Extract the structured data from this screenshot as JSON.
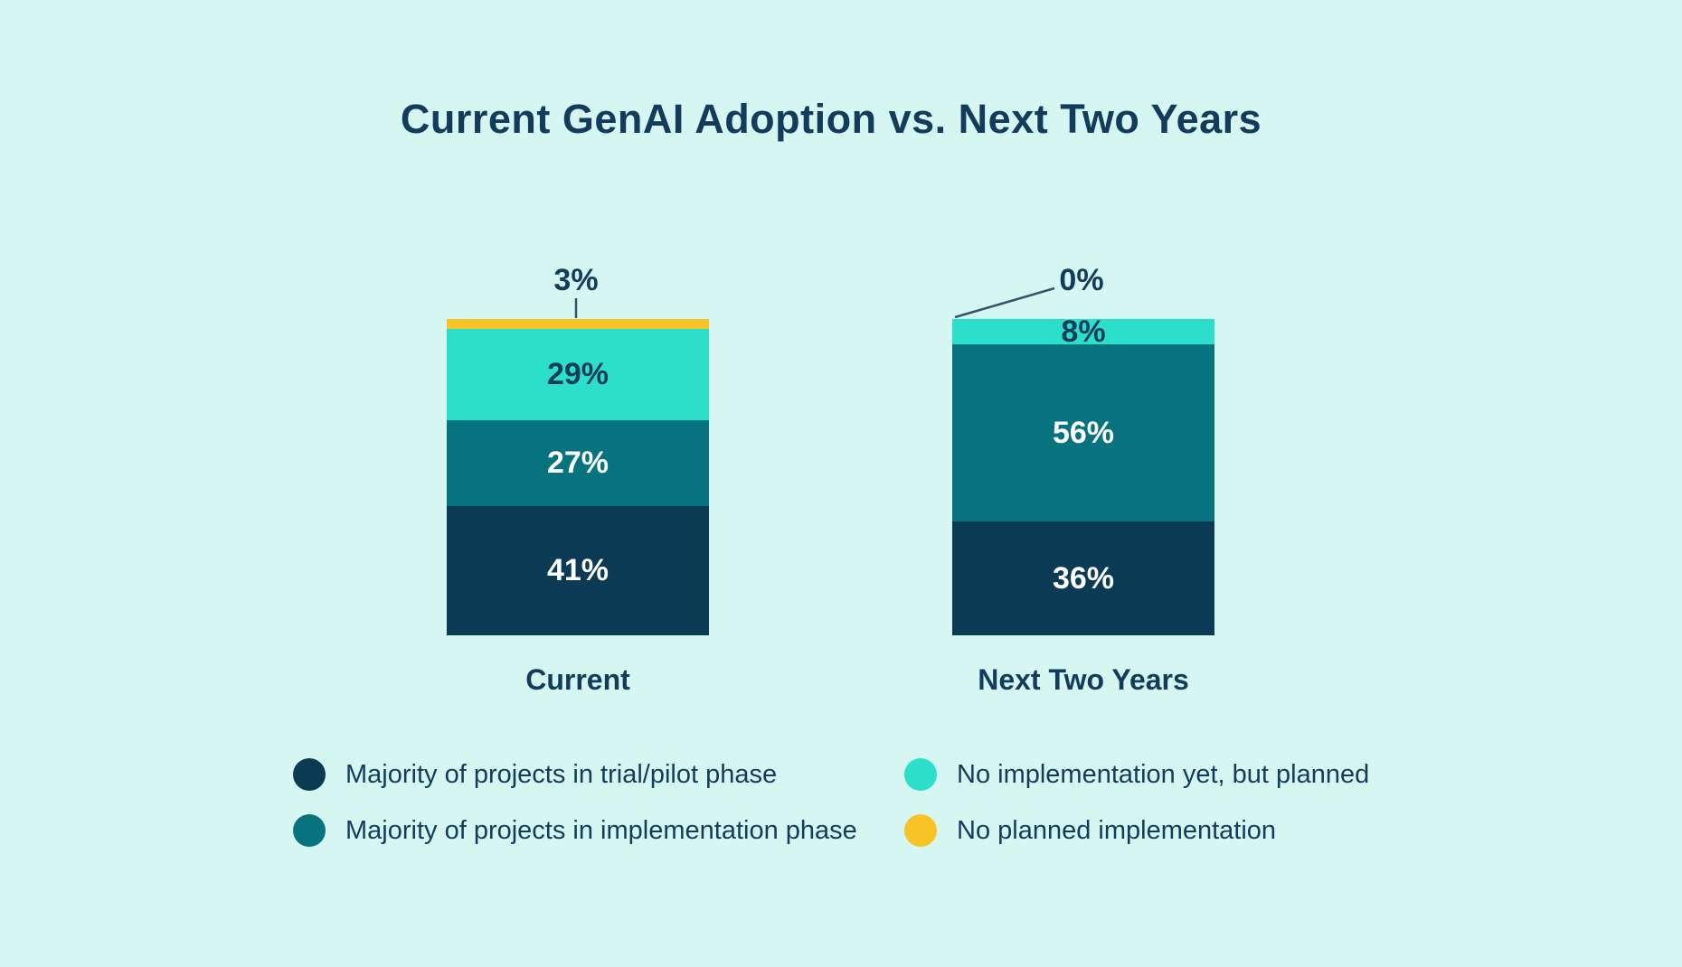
{
  "title": "Current GenAI Adoption vs. Next Two Years",
  "colors": {
    "background": "#D6F6F2",
    "navy": "#0A3A54",
    "teal": "#06737F",
    "turquoise": "#2BDFCB",
    "yellow": "#F7C327",
    "text_dark": "#133C5C",
    "text_light": "#FFFFFF",
    "leader_line": "#2F566B"
  },
  "chart_data": {
    "type": "bar",
    "subtype": "stacked-100-percent-column",
    "title": "Current GenAI Adoption vs. Next Two Years",
    "categories": [
      "Current",
      "Next Two Years"
    ],
    "series": [
      {
        "name": "Majority of projects in trial/pilot phase",
        "color": "#0A3A54",
        "values": [
          41,
          36
        ]
      },
      {
        "name": "Majority of projects in implementation phase",
        "color": "#06737F",
        "values": [
          27,
          56
        ]
      },
      {
        "name": "No implementation yet, but planned",
        "color": "#2BDFCB",
        "values": [
          29,
          8
        ]
      },
      {
        "name": "No planned implementation",
        "color": "#F7C327",
        "values": [
          3,
          0
        ]
      }
    ],
    "ylim": [
      0,
      100
    ],
    "grid": false,
    "axis_ticks": false,
    "legend_position": "bottom",
    "value_label_format": "percent"
  },
  "bars": [
    {
      "category": "Current",
      "callout": {
        "label": "3%"
      },
      "segments": [
        {
          "label": "3%",
          "pct": 3,
          "color": "yellow",
          "label_inside": false
        },
        {
          "label": "29%",
          "pct": 29,
          "color": "turquoise",
          "label_inside": true,
          "text": "dark"
        },
        {
          "label": "27%",
          "pct": 27,
          "color": "teal",
          "label_inside": true,
          "text": "light"
        },
        {
          "label": "41%",
          "pct": 41,
          "color": "navy",
          "label_inside": true,
          "text": "light"
        }
      ]
    },
    {
      "category": "Next Two Years",
      "callout": {
        "label": "0%"
      },
      "segments": [
        {
          "label": "0%",
          "pct": 0,
          "color": "yellow",
          "label_inside": false
        },
        {
          "label": "8%",
          "pct": 8,
          "color": "turquoise",
          "label_inside": true,
          "text": "dark"
        },
        {
          "label": "56%",
          "pct": 56,
          "color": "teal",
          "label_inside": true,
          "text": "light"
        },
        {
          "label": "36%",
          "pct": 36,
          "color": "navy",
          "label_inside": true,
          "text": "light"
        }
      ]
    }
  ],
  "legend": {
    "items": [
      {
        "label": "Majority of projects in trial/pilot phase",
        "color": "navy"
      },
      {
        "label": "Majority of projects in implementation phase",
        "color": "teal"
      },
      {
        "label": "No implementation yet, but planned",
        "color": "turquoise"
      },
      {
        "label": "No planned implementation",
        "color": "yellow"
      }
    ]
  }
}
